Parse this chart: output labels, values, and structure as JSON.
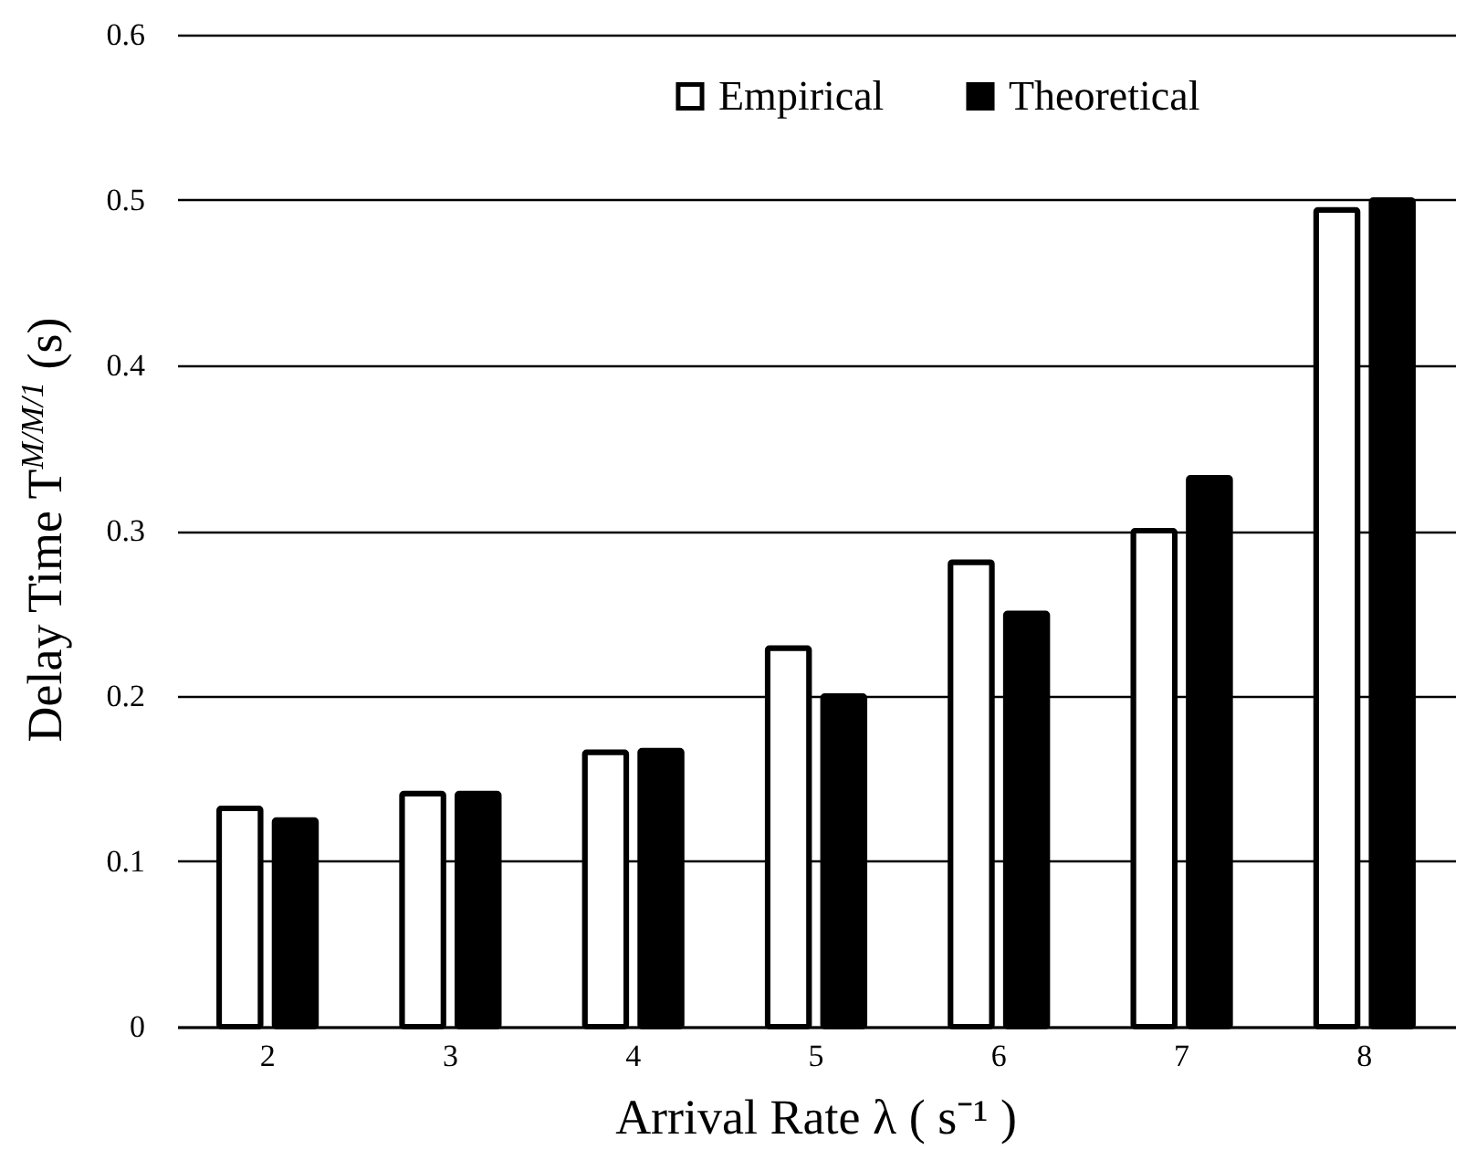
{
  "chart_data": {
    "type": "bar",
    "xlabel": "Arrival Rate λ ( s⁻¹ )",
    "ylabel": "Delay Time T$^{M/M/1}$ (s)",
    "categories": [
      "2",
      "3",
      "4",
      "5",
      "6",
      "7",
      "8"
    ],
    "series": [
      {
        "name": "Empirical",
        "color": "#ffffff",
        "values": [
          0.132,
          0.141,
          0.166,
          0.229,
          0.281,
          0.3,
          0.494
        ]
      },
      {
        "name": "Theoretical",
        "color": "#000000",
        "values": [
          0.125,
          0.141,
          0.167,
          0.2,
          0.25,
          0.332,
          0.5
        ]
      }
    ],
    "ylim": [
      0,
      0.6
    ],
    "yticks": [
      0,
      0.1,
      0.2,
      0.3,
      0.4,
      0.5,
      0.6
    ],
    "grid": "y",
    "legend": "top"
  }
}
